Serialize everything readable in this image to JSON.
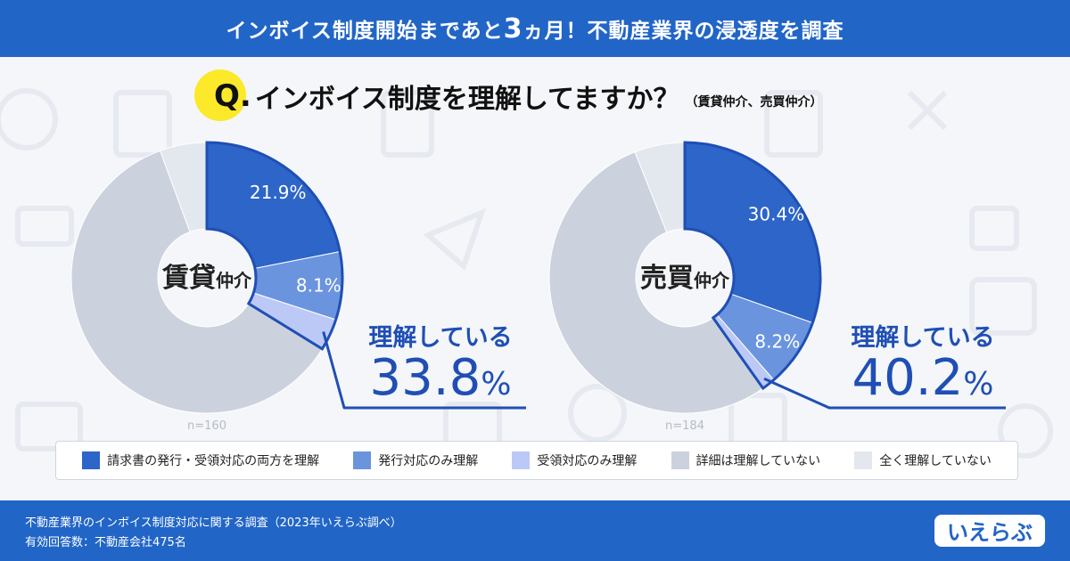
{
  "header": {
    "title_pre": "インボイス制度開始まであと",
    "title_num": "3",
    "title_post": "ヵ月！不動産業界の浸透度を調査"
  },
  "question": {
    "mark": "Q.",
    "text": "インボイス制度を理解してますか？",
    "sub": "（賃貸仲介、売買仲介）"
  },
  "chart_data": [
    {
      "type": "pie",
      "title_main": "賃貸",
      "title_small": "仲介",
      "n_label": "n=160",
      "slices": [
        {
          "name": "請求書の発行・受領対応の両方を理解",
          "value": 21.9,
          "label": "21.9%"
        },
        {
          "name": "発行対応のみ理解",
          "value": 8.1,
          "label": "8.1%"
        },
        {
          "name": "受領対応のみ理解",
          "value": 3.8,
          "label": ""
        },
        {
          "name": "詳細は理解していない",
          "value": 60.6,
          "label": ""
        },
        {
          "name": "全く理解していない",
          "value": 5.6,
          "label": ""
        }
      ],
      "callout_text": "理解している",
      "callout_value": "33.8",
      "callout_unit": "%"
    },
    {
      "type": "pie",
      "title_main": "売買",
      "title_small": "仲介",
      "n_label": "n=184",
      "slices": [
        {
          "name": "請求書の発行・受領対応の両方を理解",
          "value": 30.4,
          "label": "30.4%"
        },
        {
          "name": "発行対応のみ理解",
          "value": 8.2,
          "label": "8.2%"
        },
        {
          "name": "受領対応のみ理解",
          "value": 1.6,
          "label": ""
        },
        {
          "name": "詳細は理解していない",
          "value": 53.8,
          "label": ""
        },
        {
          "name": "全く理解していない",
          "value": 6.0,
          "label": ""
        }
      ],
      "callout_text": "理解している",
      "callout_value": "40.2",
      "callout_unit": "%"
    }
  ],
  "legend": [
    {
      "label": "請求書の発行・受領対応の両方を理解",
      "color": "#2d65c8"
    },
    {
      "label": "発行対応のみ理解",
      "color": "#6a94de"
    },
    {
      "label": "受領対応のみ理解",
      "color": "#bcc9f6"
    },
    {
      "label": "詳細は理解していない",
      "color": "#cbd2de"
    },
    {
      "label": "全く理解していない",
      "color": "#e3e7ee"
    }
  ],
  "footer": {
    "line1": "不動産業界のインボイス制度対応に関する調査（2023年いえらぶ調べ）",
    "line2": "有効回答数：不動産会社475名",
    "logo_text": "いえらぶ"
  },
  "colors": {
    "accent": "#2165c7",
    "outline": "#1f4fb5",
    "callout_text": "#1f4fb5",
    "question_circle": "#fbe92a"
  }
}
